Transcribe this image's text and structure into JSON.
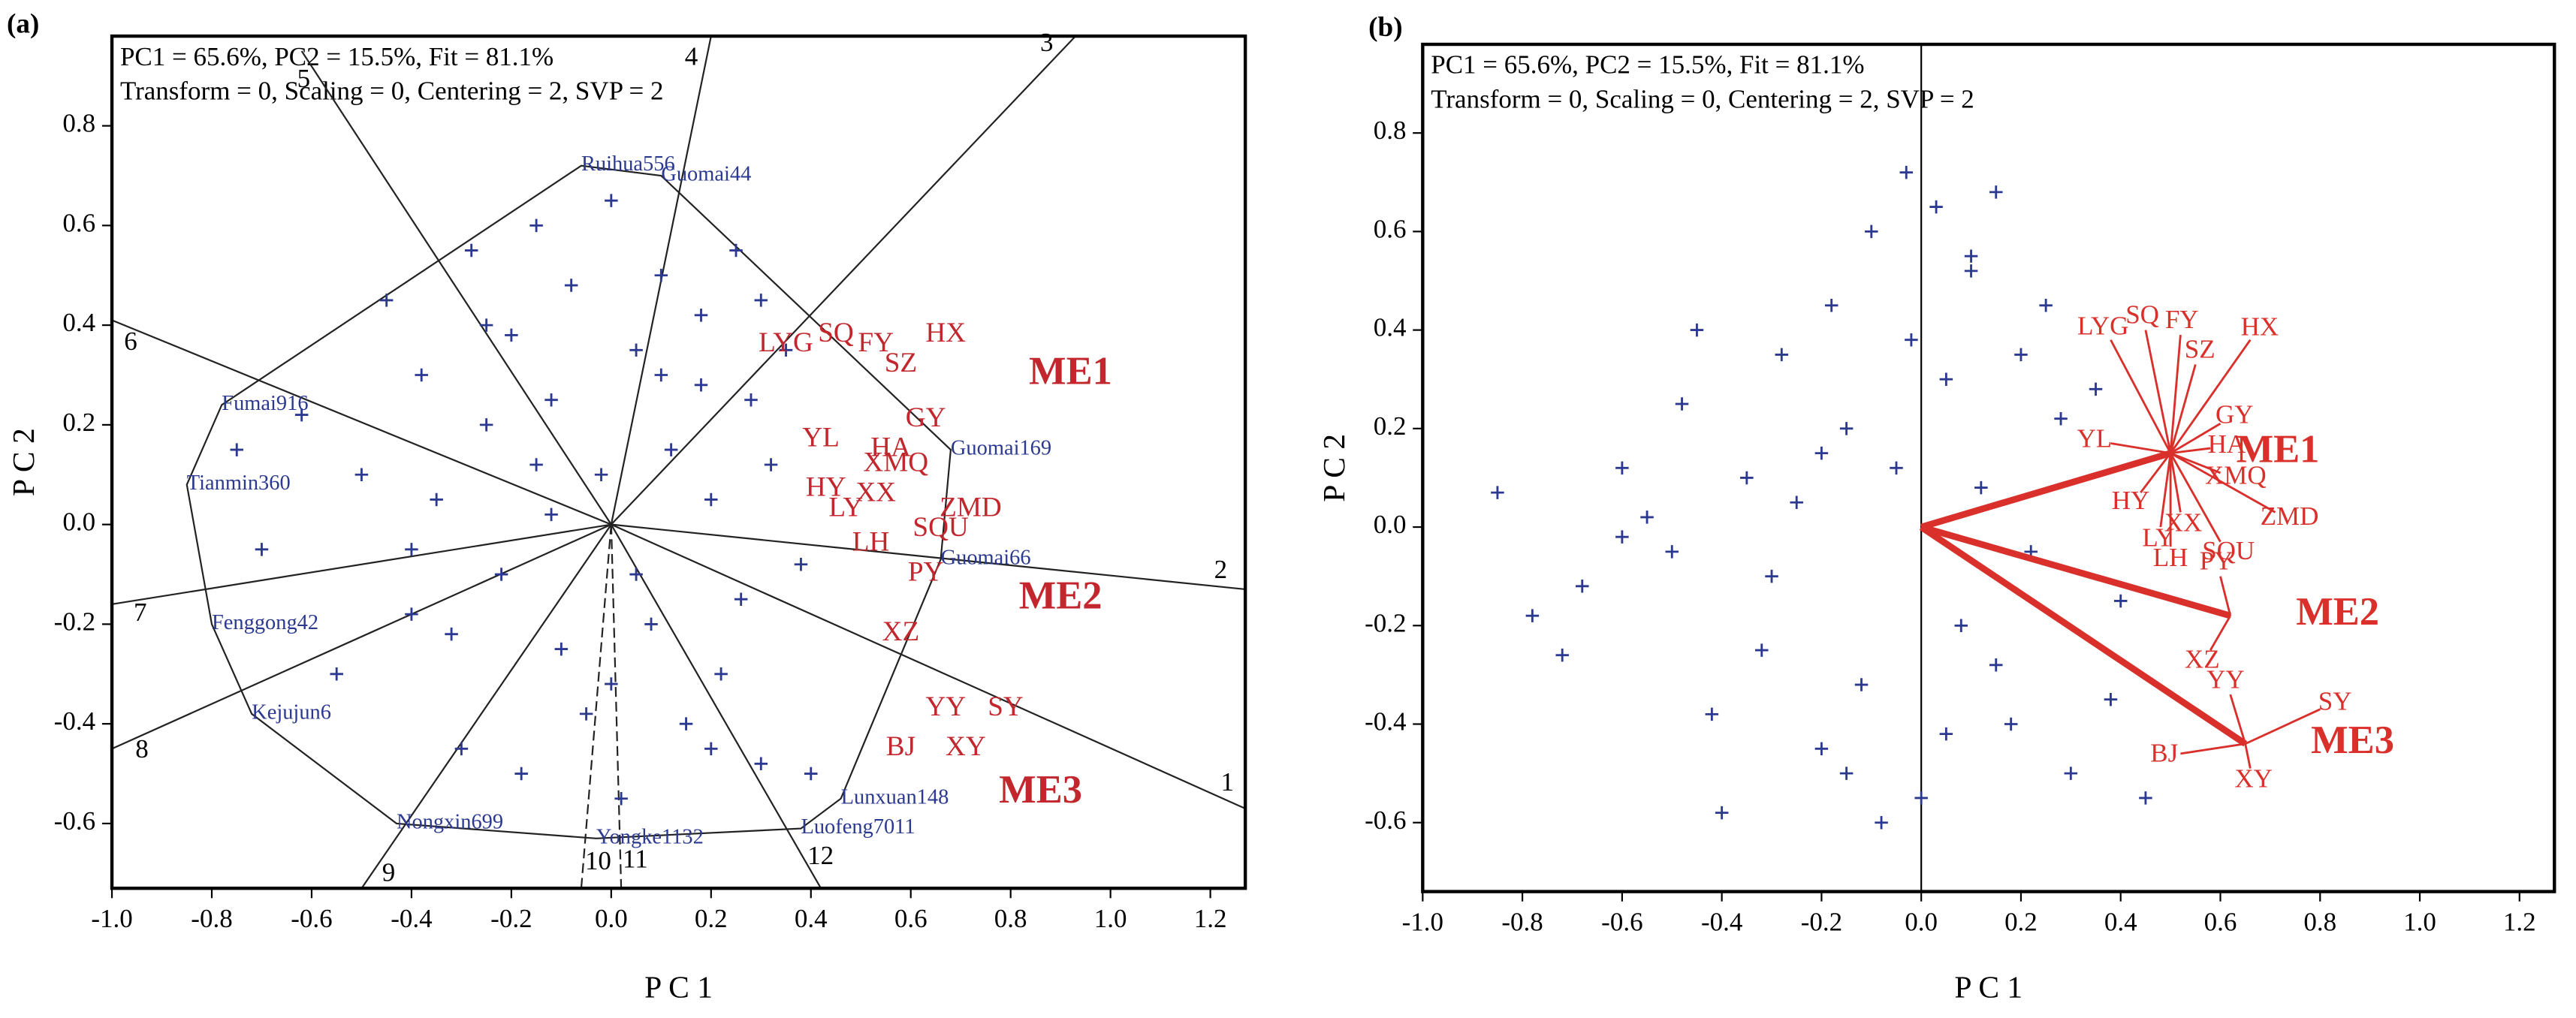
{
  "chart_data": [
    {
      "type": "biplot",
      "panel_label": "(a)",
      "annotations": [
        "PC1 = 65.6%, PC2 = 15.5%, Fit = 81.1%",
        "Transform = 0, Scaling = 0, Centering = 2, SVP = 2"
      ],
      "x_label": "P C 1",
      "y_label": "P C 2",
      "xlim": [
        -1.0,
        1.27
      ],
      "ylim": [
        -0.73,
        0.98
      ],
      "xticks": [
        {
          "value": -1,
          "label": "-1.0"
        },
        -0.8,
        -0.6,
        -0.4,
        -0.2,
        {
          "value": 0,
          "label": "0.0"
        },
        0.2,
        0.4,
        0.6,
        0.8,
        {
          "value": 1,
          "label": "1.0"
        },
        1.2
      ],
      "yticks": [
        -0.6,
        -0.4,
        -0.2,
        {
          "value": 0,
          "label": "0.0"
        },
        0.2,
        0.4,
        0.6,
        0.8
      ],
      "color": "#2b3990",
      "env_color": "#c1272d",
      "polygon": true,
      "genotypes": [
        {
          "name": "Ruihua556",
          "x": -0.06,
          "y": 0.72
        },
        {
          "name": "Guomai44",
          "x": 0.1,
          "y": 0.7
        },
        {
          "name": "Guomai169",
          "x": 0.68,
          "y": 0.15
        },
        {
          "name": "Guomai66",
          "x": 0.66,
          "y": -0.07
        },
        {
          "name": "Lunxuan148",
          "x": 0.46,
          "y": -0.55
        },
        {
          "name": "Luofeng7011",
          "x": 0.38,
          "y": -0.61
        },
        {
          "name": "Yongke1132",
          "x": -0.03,
          "y": -0.63
        },
        {
          "name": "Nongxin699",
          "x": -0.43,
          "y": -0.6
        },
        {
          "name": "Kejujun6",
          "x": -0.72,
          "y": -0.38
        },
        {
          "name": "Fenggong42",
          "x": -0.8,
          "y": -0.2
        },
        {
          "name": "Tianmin360",
          "x": -0.85,
          "y": 0.08
        },
        {
          "name": "Fumai916",
          "x": -0.78,
          "y": 0.24
        }
      ],
      "points": {
        "x": [
          -0.75,
          -0.7,
          -0.62,
          -0.55,
          -0.5,
          -0.45,
          -0.4,
          -0.38,
          -0.35,
          -0.3,
          -0.28,
          -0.25,
          -0.22,
          -0.2,
          -0.18,
          -0.15,
          -0.12,
          -0.1,
          -0.08,
          -0.05,
          -0.02,
          0.0,
          0.02,
          0.05,
          0.08,
          0.1,
          0.12,
          0.15,
          0.18,
          0.2,
          0.22,
          0.25,
          0.28,
          0.3,
          0.32,
          0.35,
          0.38,
          0.4,
          -0.32,
          -0.12,
          0.05,
          0.18,
          -0.25,
          0.1,
          0.26,
          -0.4,
          -0.15,
          0.3,
          0.0,
          0.2
        ],
        "y": [
          0.15,
          -0.05,
          0.22,
          -0.3,
          0.1,
          0.45,
          -0.18,
          0.3,
          0.05,
          -0.45,
          0.55,
          0.2,
          -0.1,
          0.38,
          -0.5,
          0.6,
          0.25,
          -0.25,
          0.48,
          -0.38,
          0.1,
          0.65,
          -0.55,
          0.35,
          -0.2,
          0.5,
          0.15,
          -0.4,
          0.42,
          0.05,
          -0.3,
          0.55,
          0.25,
          -0.48,
          0.12,
          0.35,
          -0.08,
          -0.5,
          -0.22,
          0.02,
          -0.1,
          0.28,
          0.4,
          0.3,
          -0.15,
          -0.05,
          0.12,
          0.45,
          -0.32,
          -0.45
        ]
      },
      "sectors": [
        {
          "label": "1",
          "x": 1.27,
          "y": -0.57
        },
        {
          "label": "2",
          "x": 1.27,
          "y": -0.13
        },
        {
          "label": "3",
          "x": 0.93,
          "y": 0.98
        },
        {
          "label": "4",
          "x": 0.2,
          "y": 0.98
        },
        {
          "label": "5",
          "x": -0.62,
          "y": 0.95
        },
        {
          "label": "6",
          "x": -1.0,
          "y": 0.41
        },
        {
          "label": "7",
          "x": -1.0,
          "y": -0.16
        },
        {
          "label": "8",
          "x": -1.0,
          "y": -0.45
        },
        {
          "label": "9",
          "x": -0.5,
          "y": -0.73
        },
        {
          "label": "10",
          "x": -0.06,
          "y": -0.73
        },
        {
          "label": "11",
          "x": 0.02,
          "y": -0.73
        },
        {
          "label": "12",
          "x": 0.42,
          "y": -0.73
        }
      ],
      "mega_environments": [
        {
          "name": "ME1",
          "x": 0.92,
          "y": 0.3,
          "environments": [
            {
              "name": "LYG",
              "x": 0.35,
              "y": 0.36
            },
            {
              "name": "SQ",
              "x": 0.45,
              "y": 0.38
            },
            {
              "name": "FY",
              "x": 0.53,
              "y": 0.36
            },
            {
              "name": "HX",
              "x": 0.67,
              "y": 0.38
            },
            {
              "name": "SZ",
              "x": 0.58,
              "y": 0.32
            },
            {
              "name": "GY",
              "x": 0.63,
              "y": 0.21
            },
            {
              "name": "YL",
              "x": 0.42,
              "y": 0.17
            },
            {
              "name": "HA",
              "x": 0.56,
              "y": 0.15
            },
            {
              "name": "XMQ",
              "x": 0.57,
              "y": 0.12
            },
            {
              "name": "HY",
              "x": 0.43,
              "y": 0.07
            },
            {
              "name": "XX",
              "x": 0.53,
              "y": 0.06
            },
            {
              "name": "LY",
              "x": 0.47,
              "y": 0.03
            },
            {
              "name": "ZMD",
              "x": 0.72,
              "y": 0.03
            },
            {
              "name": "SQU",
              "x": 0.66,
              "y": -0.01
            },
            {
              "name": "LH",
              "x": 0.52,
              "y": -0.04
            }
          ]
        },
        {
          "name": "ME2",
          "x": 0.9,
          "y": -0.15,
          "environments": [
            {
              "name": "PY",
              "x": 0.63,
              "y": -0.1
            },
            {
              "name": "XZ",
              "x": 0.58,
              "y": -0.22
            }
          ]
        },
        {
          "name": "ME3",
          "x": 0.86,
          "y": -0.54,
          "environments": [
            {
              "name": "YY",
              "x": 0.67,
              "y": -0.37
            },
            {
              "name": "SY",
              "x": 0.79,
              "y": -0.37
            },
            {
              "name": "BJ",
              "x": 0.58,
              "y": -0.45
            },
            {
              "name": "XY",
              "x": 0.71,
              "y": -0.45
            }
          ]
        }
      ]
    },
    {
      "type": "biplot",
      "panel_label": "(b)",
      "annotations": [
        "PC1 = 65.6%, PC2 = 15.5%, Fit = 81.1%",
        "Transform = 0, Scaling = 0, Centering = 2, SVP = 2"
      ],
      "x_label": "P C 1",
      "y_label": "P C 2",
      "xlim": [
        -1.0,
        1.27
      ],
      "ylim": [
        -0.74,
        0.98
      ],
      "xticks": [
        {
          "value": -1,
          "label": "-1.0"
        },
        -0.8,
        -0.6,
        -0.4,
        -0.2,
        {
          "value": 0,
          "label": "0.0"
        },
        0.2,
        0.4,
        0.6,
        0.8,
        {
          "value": 1,
          "label": "1.0"
        },
        1.2
      ],
      "yticks": [
        -0.6,
        -0.4,
        -0.2,
        {
          "value": 0,
          "label": "0.0"
        },
        0.2,
        0.4,
        0.6,
        0.8
      ],
      "color": "#2b3990",
      "env_color": "#d9302b",
      "vectors": true,
      "zero_line_x": true,
      "points": {
        "x": [
          -0.85,
          -0.78,
          -0.72,
          -0.68,
          -0.6,
          -0.55,
          -0.5,
          -0.48,
          -0.42,
          -0.4,
          -0.35,
          -0.32,
          -0.28,
          -0.25,
          -0.2,
          -0.18,
          -0.15,
          -0.12,
          -0.1,
          -0.05,
          -0.03,
          0.0,
          0.03,
          0.05,
          0.08,
          0.1,
          0.12,
          0.15,
          0.18,
          0.2,
          0.22,
          0.25,
          0.3,
          0.35,
          0.4,
          0.45,
          -0.3,
          -0.2,
          -0.08,
          0.15,
          -0.45,
          0.05,
          0.28,
          -0.02,
          0.38,
          -0.6,
          0.1,
          -0.15
        ],
        "y": [
          0.07,
          -0.18,
          -0.26,
          -0.12,
          0.12,
          0.02,
          -0.05,
          0.25,
          -0.38,
          -0.58,
          0.1,
          -0.25,
          0.35,
          0.05,
          -0.45,
          0.45,
          0.2,
          -0.32,
          0.6,
          0.12,
          0.72,
          -0.55,
          0.65,
          0.3,
          -0.2,
          0.52,
          0.08,
          0.68,
          -0.4,
          0.35,
          -0.05,
          0.45,
          -0.5,
          0.28,
          -0.15,
          -0.55,
          -0.1,
          0.15,
          -0.6,
          -0.28,
          0.4,
          -0.42,
          0.22,
          0.38,
          -0.35,
          -0.02,
          0.55,
          -0.5
        ]
      },
      "mega_environments": [
        {
          "name": "ME1",
          "x": 0.5,
          "y": 0.15,
          "environments": [
            {
              "name": "LYG",
              "x": 0.38,
              "y": 0.38
            },
            {
              "name": "SQ",
              "x": 0.45,
              "y": 0.4
            },
            {
              "name": "FY",
              "x": 0.52,
              "y": 0.39
            },
            {
              "name": "HX",
              "x": 0.66,
              "y": 0.38
            },
            {
              "name": "SZ",
              "x": 0.55,
              "y": 0.33
            },
            {
              "name": "GY",
              "x": 0.6,
              "y": 0.21
            },
            {
              "name": "YL",
              "x": 0.38,
              "y": 0.17
            },
            {
              "name": "HA",
              "x": 0.58,
              "y": 0.16
            },
            {
              "name": "XMQ",
              "x": 0.6,
              "y": 0.11
            },
            {
              "name": "HY",
              "x": 0.44,
              "y": 0.07
            },
            {
              "name": "XX",
              "x": 0.52,
              "y": 0.03
            },
            {
              "name": "LY",
              "x": 0.48,
              "y": 0.0
            },
            {
              "name": "ZMD",
              "x": 0.71,
              "y": 0.03
            },
            {
              "name": "SQU",
              "x": 0.6,
              "y": -0.03
            },
            {
              "name": "LH",
              "x": 0.5,
              "y": -0.04
            }
          ]
        },
        {
          "name": "ME2",
          "x": 0.62,
          "y": -0.18,
          "environments": [
            {
              "name": "PY",
              "x": 0.6,
              "y": -0.1
            },
            {
              "name": "XZ",
              "x": 0.58,
              "y": -0.25
            }
          ]
        },
        {
          "name": "ME3",
          "x": 0.65,
          "y": -0.44,
          "environments": [
            {
              "name": "YY",
              "x": 0.62,
              "y": -0.34
            },
            {
              "name": "SY",
              "x": 0.8,
              "y": -0.37
            },
            {
              "name": "BJ",
              "x": 0.52,
              "y": -0.46
            },
            {
              "name": "XY",
              "x": 0.66,
              "y": -0.49
            }
          ]
        }
      ]
    }
  ]
}
